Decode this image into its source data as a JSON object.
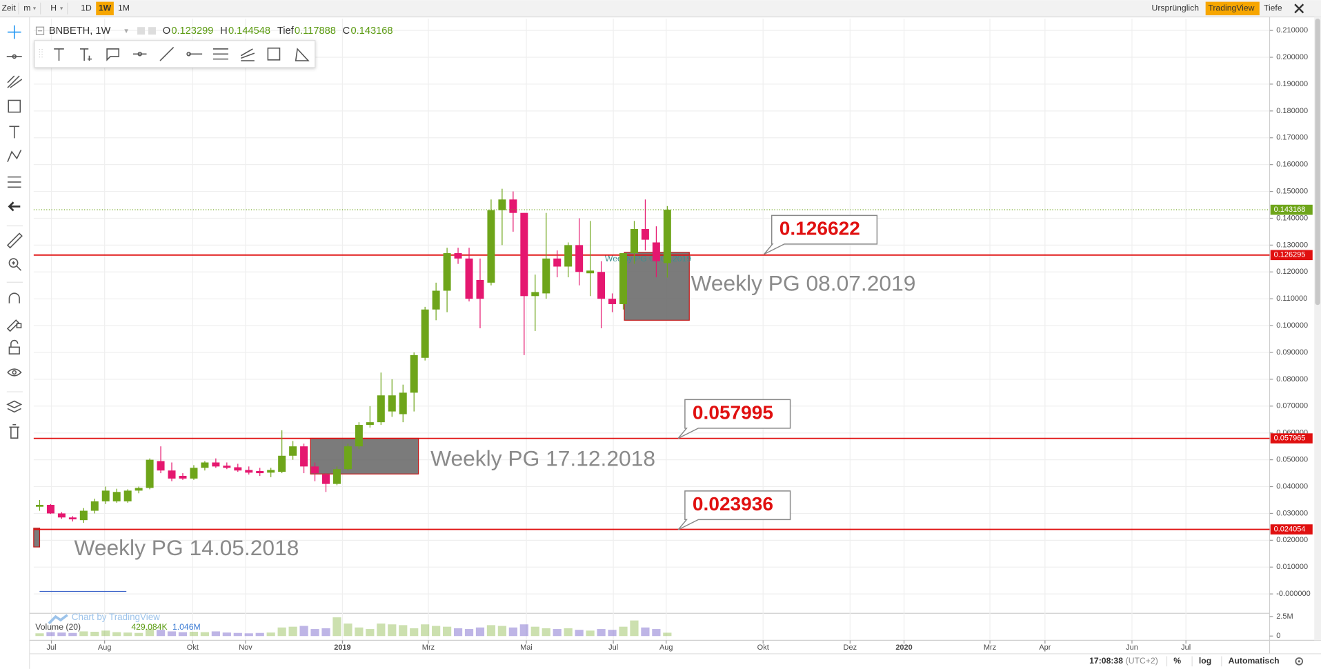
{
  "toolbar": {
    "items": [
      "Zeit",
      "m",
      "H",
      "1D",
      "1W",
      "1M"
    ],
    "active": "1W",
    "right": [
      "Ursprünglich",
      "TradingView",
      "Tiefe"
    ],
    "right_active": "TradingView"
  },
  "legend": {
    "symbol": "BNBETH, 1W",
    "fields": [
      {
        "name": "O",
        "value": 0.123299
      },
      {
        "name": "H",
        "value": 0.144548
      },
      {
        "name": "Tief",
        "value": 0.117888
      },
      {
        "name": "C",
        "value": 0.143168
      }
    ]
  },
  "chart_data": {
    "type": "candlestick",
    "up_color": "#6ea51a",
    "down_color": "#e5176f",
    "ohlc": [
      [
        0.0325,
        0.035,
        0.031,
        0.0332
      ],
      [
        0.0332,
        0.0335,
        0.0298,
        0.03
      ],
      [
        0.03,
        0.0305,
        0.028,
        0.0285
      ],
      [
        0.0285,
        0.029,
        0.027,
        0.0278
      ],
      [
        0.0275,
        0.032,
        0.0265,
        0.031
      ],
      [
        0.031,
        0.0355,
        0.03,
        0.0345
      ],
      [
        0.0345,
        0.04,
        0.0335,
        0.0385
      ],
      [
        0.0345,
        0.0392,
        0.034,
        0.038
      ],
      [
        0.0345,
        0.039,
        0.034,
        0.0385
      ],
      [
        0.0385,
        0.04,
        0.0375,
        0.0395
      ],
      [
        0.0395,
        0.0505,
        0.039,
        0.05
      ],
      [
        0.0495,
        0.055,
        0.045,
        0.046
      ],
      [
        0.046,
        0.049,
        0.042,
        0.043
      ],
      [
        0.044,
        0.045,
        0.0425,
        0.043
      ],
      [
        0.043,
        0.048,
        0.0425,
        0.047
      ],
      [
        0.047,
        0.0495,
        0.046,
        0.049
      ],
      [
        0.049,
        0.0505,
        0.047,
        0.0475
      ],
      [
        0.0478,
        0.049,
        0.0465,
        0.047
      ],
      [
        0.0472,
        0.0485,
        0.0455,
        0.046
      ],
      [
        0.0462,
        0.0475,
        0.0445,
        0.0452
      ],
      [
        0.0458,
        0.047,
        0.044,
        0.045
      ],
      [
        0.0452,
        0.047,
        0.0435,
        0.0462
      ],
      [
        0.0455,
        0.061,
        0.045,
        0.0515
      ],
      [
        0.0515,
        0.057,
        0.05,
        0.055
      ],
      [
        0.055,
        0.056,
        0.045,
        0.0475
      ],
      [
        0.0475,
        0.049,
        0.042,
        0.045
      ],
      [
        0.0445,
        0.045,
        0.038,
        0.041
      ],
      [
        0.041,
        0.0475,
        0.0405,
        0.0465
      ],
      [
        0.0465,
        0.056,
        0.046,
        0.055
      ],
      [
        0.055,
        0.064,
        0.054,
        0.063
      ],
      [
        0.063,
        0.07,
        0.062,
        0.064
      ],
      [
        0.064,
        0.0825,
        0.063,
        0.074
      ],
      [
        0.068,
        0.08,
        0.066,
        0.074
      ],
      [
        0.067,
        0.078,
        0.064,
        0.075
      ],
      [
        0.075,
        0.09,
        0.068,
        0.089
      ],
      [
        0.088,
        0.107,
        0.087,
        0.106
      ],
      [
        0.106,
        0.116,
        0.102,
        0.113
      ],
      [
        0.113,
        0.129,
        0.105,
        0.127
      ],
      [
        0.127,
        0.129,
        0.123,
        0.125
      ],
      [
        0.125,
        0.129,
        0.109,
        0.11
      ],
      [
        0.117,
        0.125,
        0.099,
        0.11
      ],
      [
        0.116,
        0.147,
        0.115,
        0.143
      ],
      [
        0.143,
        0.151,
        0.13,
        0.147
      ],
      [
        0.147,
        0.15,
        0.135,
        0.142
      ],
      [
        0.142,
        0.142,
        0.089,
        0.111
      ],
      [
        0.111,
        0.119,
        0.098,
        0.1125
      ],
      [
        0.112,
        0.142,
        0.11,
        0.125
      ],
      [
        0.125,
        0.128,
        0.118,
        0.122
      ],
      [
        0.122,
        0.131,
        0.118,
        0.13
      ],
      [
        0.13,
        0.14,
        0.115,
        0.12
      ],
      [
        0.1195,
        0.139,
        0.111,
        0.1205
      ],
      [
        0.12,
        0.124,
        0.099,
        0.11
      ],
      [
        0.11,
        0.112,
        0.105,
        0.108
      ],
      [
        0.108,
        0.127,
        0.106,
        0.127
      ],
      [
        0.127,
        0.139,
        0.123,
        0.136
      ],
      [
        0.136,
        0.147,
        0.128,
        0.132
      ],
      [
        0.131,
        0.137,
        0.118,
        0.124
      ],
      [
        0.123299,
        0.144548,
        0.117888,
        0.143168
      ]
    ],
    "xlim": [
      -0.54,
      111.7
    ],
    "xticks": [
      {
        "value": 1.07,
        "label": "Jul"
      },
      {
        "value": 5.9,
        "label": "Aug"
      },
      {
        "value": 13.9,
        "label": "Okt"
      },
      {
        "value": 18.7,
        "label": "Nov"
      },
      {
        "value": 27.5,
        "label": "2019"
      },
      {
        "value": 35.3,
        "label": "Mrz"
      },
      {
        "value": 44.2,
        "label": "Mai"
      },
      {
        "value": 52.1,
        "label": "Jul"
      },
      {
        "value": 56.9,
        "label": "Aug"
      },
      {
        "value": 65.7,
        "label": "Okt"
      },
      {
        "value": 73.6,
        "label": "Dez"
      },
      {
        "value": 78.5,
        "label": "2020"
      },
      {
        "value": 86.3,
        "label": "Mrz"
      },
      {
        "value": 91.3,
        "label": "Apr"
      },
      {
        "value": 99.2,
        "label": "Jun"
      },
      {
        "value": 104.1,
        "label": "Jul"
      }
    ],
    "ylim": [
      -0.00785,
      0.2144
    ],
    "yticks": [
      {
        "value": 0.21,
        "label": "0.210000"
      },
      {
        "value": 0.2,
        "label": "0.200000"
      },
      {
        "value": 0.19,
        "label": "0.190000"
      },
      {
        "value": 0.18,
        "label": "0.180000"
      },
      {
        "value": 0.17,
        "label": "0.170000"
      },
      {
        "value": 0.16,
        "label": "0.160000"
      },
      {
        "value": 0.15,
        "label": "0.150000"
      },
      {
        "value": 0.14,
        "label": "0.140000"
      },
      {
        "value": 0.13,
        "label": "0.130000"
      },
      {
        "value": 0.12,
        "label": "0.120000"
      },
      {
        "value": 0.11,
        "label": "0.110000"
      },
      {
        "value": 0.1,
        "label": "0.100000"
      },
      {
        "value": 0.09,
        "label": "0.090000"
      },
      {
        "value": 0.08,
        "label": "0.080000"
      },
      {
        "value": 0.07,
        "label": "0.070000"
      },
      {
        "value": 0.06,
        "label": "0.060000"
      },
      {
        "value": 0.05,
        "label": "0.050000"
      },
      {
        "value": 0.04,
        "label": "0.040000"
      },
      {
        "value": 0.03,
        "label": "0.030000"
      },
      {
        "value": 0.02,
        "label": "0.020000"
      },
      {
        "value": 0.01,
        "label": "0.010000"
      },
      {
        "value": 0,
        "label": "-0.000000"
      }
    ],
    "grid": true,
    "hlines": [
      0.126295,
      0.057965,
      0.024054
    ],
    "hline_color": "#e01010",
    "callouts": [
      0.126622,
      0.057995,
      0.023936
    ],
    "boxes": [
      {
        "x": [
          53.1,
          59.0
        ],
        "top": 0.1273,
        "bottom": 0.102,
        "label": "Weekly PG 08.07.2019"
      },
      {
        "x": [
          24.6,
          34.4
        ],
        "top": 0.058,
        "bottom": 0.0447,
        "label": "Weekly PG 17.12.2018"
      },
      {
        "x": [
          -0.54,
          0.0
        ],
        "top": 0.0245,
        "bottom": 0.0175,
        "label": "Weekly PG  14.05.2018"
      }
    ],
    "volume": {
      "name": "Volume (20)",
      "legend": [
        "429.084K",
        "1.046M"
      ],
      "values": [
        350000,
        500000,
        450000,
        400000,
        600000,
        550000,
        700000,
        500000,
        450000,
        400000,
        900000,
        800000,
        600000,
        500000,
        550000,
        500000,
        600000,
        450000,
        400000,
        350000,
        400000,
        450000,
        1100000,
        1200000,
        1300000,
        900000,
        1000000,
        2400000,
        1600000,
        1100000,
        900000,
        1600000,
        1500000,
        1400000,
        1000000,
        1500000,
        1300000,
        1200000,
        1000000,
        900000,
        1100000,
        1400000,
        1300000,
        1100000,
        1500000,
        1200000,
        1000000,
        900000,
        1000000,
        800000,
        700000,
        900000,
        800000,
        1200000,
        2000000,
        1100000,
        900000,
        429084
      ],
      "ylim": [
        0,
        2700000
      ],
      "yticks": [
        {
          "value": 2500000,
          "label": "2.5M"
        },
        0
      ]
    },
    "watermark": "Chart by TradingView"
  },
  "status_bar": {
    "time": "17:08:38",
    "tz": "(UTC+2)",
    "items": [
      "%",
      "log",
      "Automatisch"
    ]
  }
}
